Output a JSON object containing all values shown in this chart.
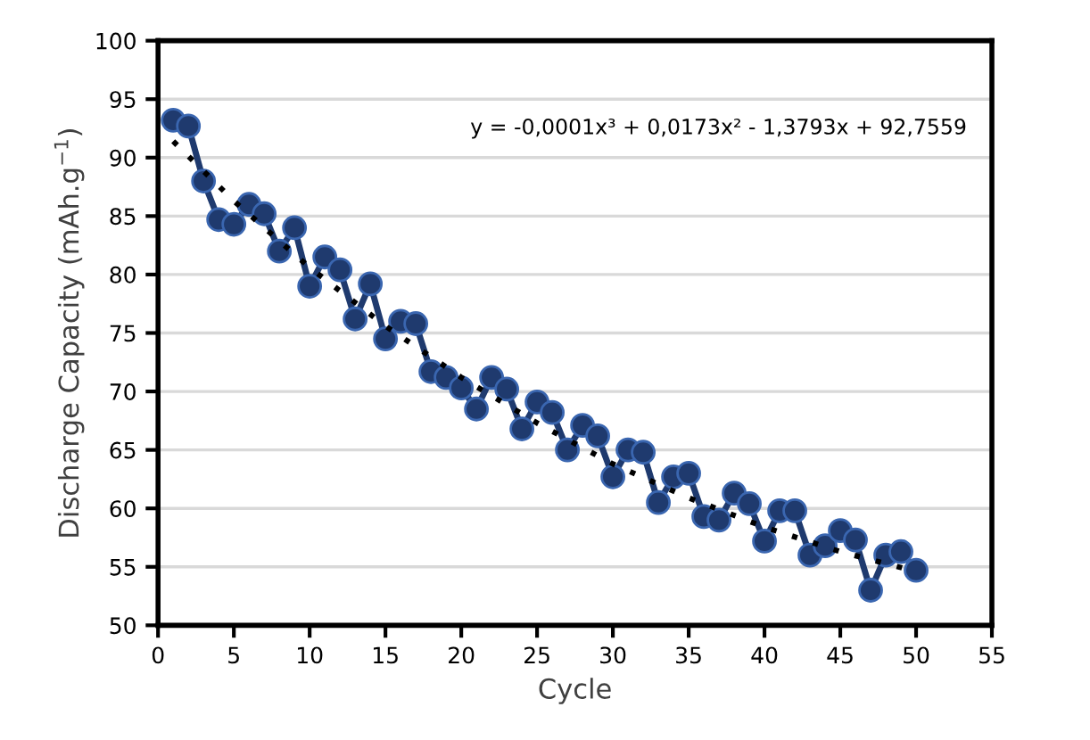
{
  "chart_data": {
    "type": "line",
    "xlabel": "Cycle",
    "ylabel": "Discharge Capacity (mAh.g$^{−1}$)",
    "xlim": [
      0,
      55
    ],
    "xticks": [
      0,
      5,
      10,
      15,
      20,
      25,
      30,
      35,
      40,
      45,
      50,
      55
    ],
    "ylim": [
      50,
      100
    ],
    "yticks": [
      50,
      55,
      60,
      65,
      70,
      75,
      80,
      85,
      90,
      95,
      100
    ],
    "grid": "y",
    "legend": false,
    "annotations": [
      "y = -0,0001x³ + 0,0173x² - 1,3793x + 92,7559"
    ],
    "series": [
      {
        "color": "#1f3a6e",
        "marker": "circle",
        "line_style": "solid",
        "x": [
          1,
          2,
          3,
          4,
          5,
          6,
          7,
          8,
          9,
          10,
          11,
          12,
          13,
          14,
          15,
          16,
          17,
          18,
          19,
          20,
          21,
          22,
          23,
          24,
          25,
          26,
          27,
          28,
          29,
          30,
          31,
          32,
          33,
          34,
          35,
          36,
          37,
          38,
          39,
          40,
          41,
          42,
          43,
          44,
          45,
          46,
          47,
          48,
          49,
          50
        ],
        "values": [
          93.2,
          92.7,
          88,
          84.7,
          84.3,
          86,
          85.2,
          82,
          84,
          79,
          81.5,
          80.4,
          76.2,
          79.2,
          74.5,
          76,
          75.8,
          71.7,
          71.2,
          70.3,
          68.5,
          71.2,
          70.2,
          66.8,
          69.1,
          68.2,
          65,
          67.1,
          66.2,
          62.7,
          65,
          64.8,
          60.5,
          62.7,
          63,
          59.3,
          59,
          61.3,
          60.4,
          57.2,
          59.8,
          59.8,
          56,
          56.8,
          58.1,
          57.3,
          53,
          56,
          56.3,
          54.7
        ]
      },
      {
        "color": "#000000",
        "marker": "none",
        "line_style": "dotted",
        "x": [
          1,
          5,
          10,
          15,
          20,
          25,
          30,
          35,
          40,
          45,
          50
        ],
        "values": [
          91.4,
          86.3,
          80.6,
          75.6,
          71.2,
          67.3,
          63.8,
          60.9,
          58.4,
          56.3,
          54.6
        ]
      }
    ]
  }
}
